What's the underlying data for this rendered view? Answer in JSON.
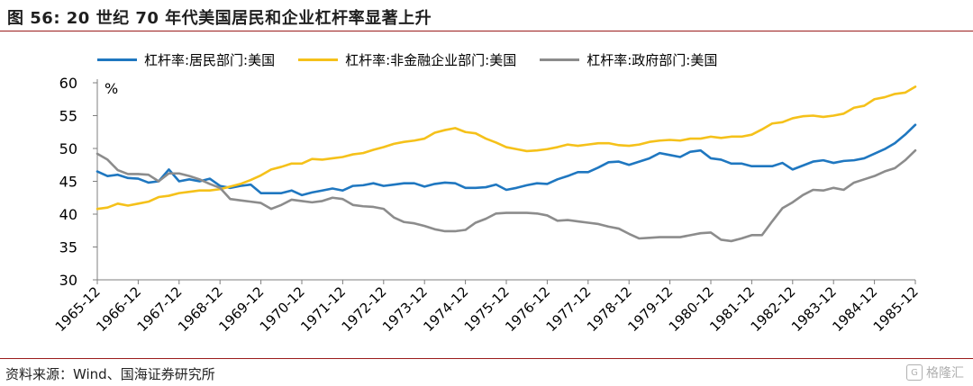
{
  "figure": {
    "title": "图 56:  20 世纪 70 年代美国居民和企业杠杆率显著上升",
    "source": "资料来源：Wind、国海证券研究所",
    "watermark": "格隆汇"
  },
  "chart_data": {
    "type": "line",
    "title": "",
    "xlabel": "",
    "ylabel": "%",
    "ylim": [
      30,
      60
    ],
    "yticks": [
      30,
      35,
      40,
      45,
      50,
      55,
      60
    ],
    "x": [
      "1965-12",
      "1966-03",
      "1966-06",
      "1966-09",
      "1966-12",
      "1967-03",
      "1967-06",
      "1967-09",
      "1967-12",
      "1968-03",
      "1968-06",
      "1968-09",
      "1968-12",
      "1969-03",
      "1969-06",
      "1969-09",
      "1969-12",
      "1970-03",
      "1970-06",
      "1970-09",
      "1970-12",
      "1971-03",
      "1971-06",
      "1971-09",
      "1971-12",
      "1972-03",
      "1972-06",
      "1972-09",
      "1972-12",
      "1973-03",
      "1973-06",
      "1973-09",
      "1973-12",
      "1974-03",
      "1974-06",
      "1974-09",
      "1974-12",
      "1975-03",
      "1975-06",
      "1975-09",
      "1975-12",
      "1976-03",
      "1976-06",
      "1976-09",
      "1976-12",
      "1977-03",
      "1977-06",
      "1977-09",
      "1977-12",
      "1978-03",
      "1978-06",
      "1978-09",
      "1978-12",
      "1979-03",
      "1979-06",
      "1979-09",
      "1979-12",
      "1980-03",
      "1980-06",
      "1980-09",
      "1980-12",
      "1981-03",
      "1981-06",
      "1981-09",
      "1981-12",
      "1982-03",
      "1982-06",
      "1982-09",
      "1982-12",
      "1983-03",
      "1983-06",
      "1983-09",
      "1983-12",
      "1984-03",
      "1984-06",
      "1984-09",
      "1984-12",
      "1985-03",
      "1985-06",
      "1985-09",
      "1985-12"
    ],
    "x_tick_labels": [
      "1965-12",
      "1966-12",
      "1967-12",
      "1968-12",
      "1969-12",
      "1970-12",
      "1971-12",
      "1972-12",
      "1973-12",
      "1974-12",
      "1975-12",
      "1976-12",
      "1977-12",
      "1978-12",
      "1979-12",
      "1980-12",
      "1981-12",
      "1982-12",
      "1983-12",
      "1984-12",
      "1985-12"
    ],
    "legend_position": "top",
    "grid": false,
    "series": [
      {
        "name": "杠杆率:居民部门:美国",
        "color": "#1f77c0",
        "values": [
          46.5,
          45.8,
          46.0,
          45.5,
          45.4,
          44.8,
          45.0,
          46.8,
          45.0,
          45.3,
          45.0,
          45.4,
          44.3,
          44.0,
          44.3,
          44.5,
          43.2,
          43.2,
          43.2,
          43.6,
          42.9,
          43.3,
          43.6,
          43.9,
          43.6,
          44.3,
          44.4,
          44.7,
          44.3,
          44.5,
          44.7,
          44.7,
          44.2,
          44.6,
          44.8,
          44.7,
          44.0,
          44.0,
          44.1,
          44.5,
          43.7,
          44.0,
          44.4,
          44.7,
          44.6,
          45.3,
          45.8,
          46.4,
          46.4,
          47.1,
          47.9,
          48.0,
          47.5,
          48.0,
          48.5,
          49.3,
          49.0,
          48.7,
          49.5,
          49.7,
          48.5,
          48.3,
          47.7,
          47.7,
          47.3,
          47.3,
          47.3,
          47.8,
          46.8,
          47.4,
          48.0,
          48.2,
          47.8,
          48.1,
          48.2,
          48.5,
          49.2,
          49.9,
          50.8,
          52.1,
          53.6
        ]
      },
      {
        "name": "杠杆率:非金融企业部门:美国",
        "color": "#f5c11a",
        "values": [
          40.8,
          41.0,
          41.6,
          41.3,
          41.6,
          41.9,
          42.6,
          42.8,
          43.2,
          43.4,
          43.6,
          43.6,
          43.8,
          44.2,
          44.6,
          45.2,
          45.9,
          46.8,
          47.2,
          47.7,
          47.7,
          48.4,
          48.3,
          48.5,
          48.7,
          49.1,
          49.3,
          49.8,
          50.2,
          50.7,
          51.0,
          51.2,
          51.5,
          52.4,
          52.8,
          53.1,
          52.5,
          52.3,
          51.5,
          50.9,
          50.2,
          49.9,
          49.6,
          49.7,
          49.9,
          50.2,
          50.6,
          50.4,
          50.6,
          50.8,
          50.8,
          50.5,
          50.4,
          50.6,
          51.0,
          51.2,
          51.3,
          51.2,
          51.5,
          51.5,
          51.8,
          51.6,
          51.8,
          51.8,
          52.1,
          52.9,
          53.8,
          54.0,
          54.6,
          54.9,
          55.0,
          54.8,
          55.0,
          55.3,
          56.2,
          56.5,
          57.5,
          57.8,
          58.3,
          58.5,
          59.4
        ]
      },
      {
        "name": "杠杆率:政府部门:美国",
        "color": "#8c8c8c",
        "values": [
          49.2,
          48.3,
          46.7,
          46.1,
          46.1,
          46.0,
          45.0,
          46.2,
          46.2,
          45.8,
          45.3,
          44.6,
          44.0,
          42.3,
          42.1,
          41.9,
          41.7,
          40.8,
          41.4,
          42.2,
          42.0,
          41.8,
          42.0,
          42.5,
          42.3,
          41.4,
          41.2,
          41.1,
          40.8,
          39.5,
          38.8,
          38.6,
          38.2,
          37.7,
          37.4,
          37.4,
          37.6,
          38.7,
          39.3,
          40.1,
          40.2,
          40.2,
          40.2,
          40.1,
          39.8,
          39.0,
          39.1,
          38.9,
          38.7,
          38.5,
          38.1,
          37.8,
          37.0,
          36.3,
          36.4,
          36.5,
          36.5,
          36.5,
          36.8,
          37.1,
          37.2,
          36.1,
          35.9,
          36.3,
          36.8,
          36.8,
          38.9,
          40.9,
          41.8,
          42.9,
          43.7,
          43.6,
          44.0,
          43.7,
          44.8,
          45.3,
          45.8,
          46.5,
          47.0,
          48.2,
          49.7
        ]
      }
    ]
  }
}
